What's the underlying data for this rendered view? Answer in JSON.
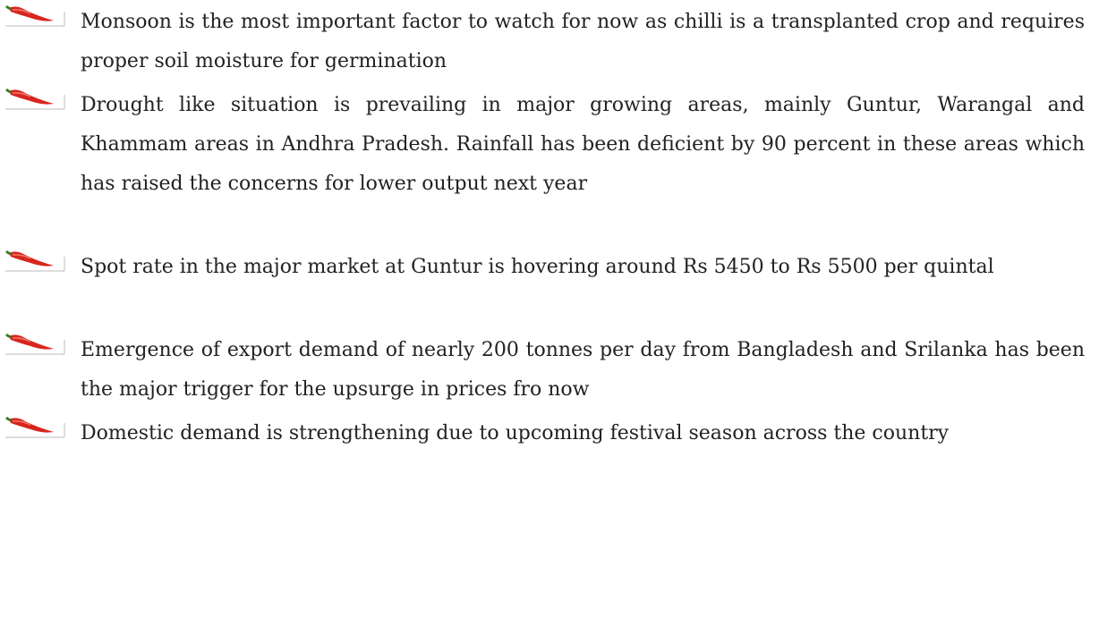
{
  "bullets": [
    "Monsoon is the most important factor to watch for now as chilli is a transplanted crop and requires proper soil moisture for germination",
    "Drought like situation is prevailing in major growing areas, mainly Guntur, Warangal and Khammam areas in Andhra Pradesh. Rainfall has been deficient by 90 percent in these areas which has raised the concerns for lower output next year",
    "Spot rate in the major market at Guntur is hovering around Rs 5450 to Rs 5500 per quintal",
    "Emergence of export demand of nearly 200 tonnes per day from Bangladesh and Srilanka has been the major trigger for the upsurge in prices fro now",
    "Domestic demand is strengthening due to upcoming festival season across the country"
  ]
}
